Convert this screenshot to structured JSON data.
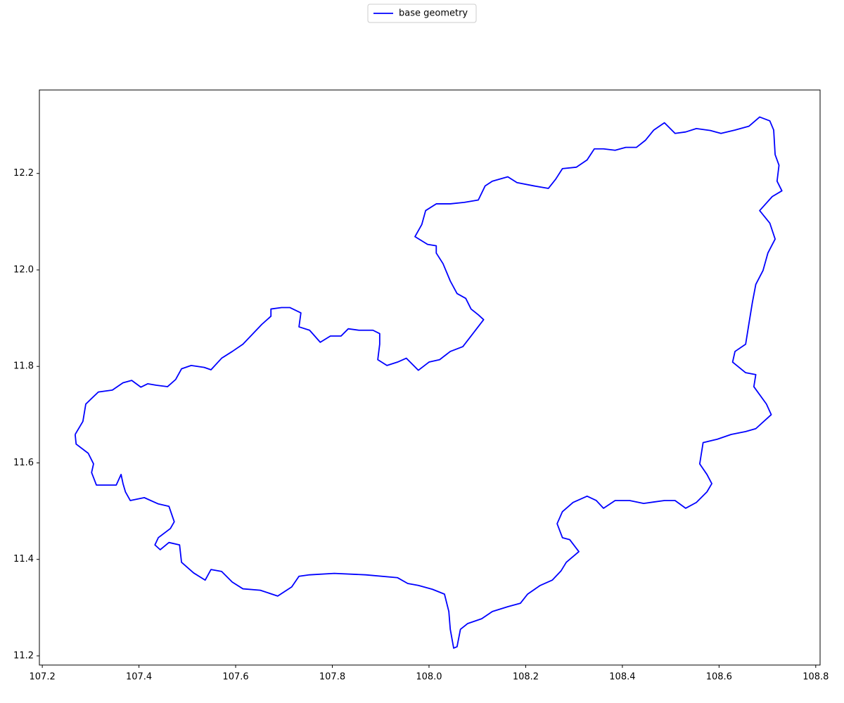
{
  "chart_data": {
    "type": "line",
    "series": [
      {
        "name": "base geometry",
        "color": "#0000ff",
        "x": [
          107.268,
          107.284,
          107.29,
          107.316,
          107.345,
          107.367,
          107.385,
          107.404,
          107.418,
          107.436,
          107.459,
          107.476,
          107.488,
          107.508,
          107.535,
          107.549,
          107.571,
          107.593,
          107.615,
          107.636,
          107.654,
          107.673,
          107.673,
          107.695,
          107.712,
          107.735,
          107.731,
          107.753,
          107.775,
          107.796,
          107.818,
          107.833,
          107.855,
          107.884,
          107.898,
          107.898,
          107.894,
          107.913,
          107.935,
          107.953,
          107.978,
          108.0,
          108.022,
          108.044,
          108.07,
          108.087,
          108.113,
          108.102,
          108.087,
          108.076,
          108.058,
          108.044,
          108.029,
          108.015,
          108.015,
          107.997,
          107.971,
          107.985,
          107.993,
          108.015,
          108.044,
          108.073,
          108.102,
          108.116,
          108.131,
          108.163,
          108.182,
          108.218,
          108.247,
          108.262,
          108.276,
          108.305,
          108.327,
          108.342,
          108.361,
          108.385,
          108.407,
          108.429,
          108.448,
          108.465,
          108.487,
          108.509,
          108.531,
          108.553,
          108.582,
          108.604,
          108.633,
          108.662,
          108.684,
          108.705,
          108.713,
          108.716,
          108.724,
          108.72,
          108.73,
          108.71,
          108.684,
          108.705,
          108.716,
          108.701,
          108.691,
          108.676,
          108.669,
          108.662,
          108.655,
          108.633,
          108.628,
          108.655,
          108.676,
          108.672,
          108.698,
          108.708,
          108.676,
          108.655,
          108.625,
          108.596,
          108.567,
          108.56,
          108.575,
          108.585,
          108.575,
          108.553,
          108.531,
          108.509,
          108.487,
          108.465,
          108.444,
          108.415,
          108.385,
          108.361,
          108.346,
          108.327,
          108.298,
          108.276,
          108.265,
          108.276,
          108.291,
          108.31,
          108.284,
          108.273,
          108.255,
          108.23,
          108.204,
          108.189,
          108.163,
          108.131,
          108.109,
          108.08,
          108.065,
          108.058,
          108.051,
          108.044,
          108.041,
          108.032,
          108.007,
          107.978,
          107.956,
          107.935,
          107.869,
          107.804,
          107.753,
          107.731,
          107.716,
          107.687,
          107.651,
          107.615,
          107.593,
          107.571,
          107.549,
          107.537,
          107.513,
          107.488,
          107.484,
          107.462,
          107.444,
          107.433,
          107.44,
          107.465,
          107.473,
          107.462,
          107.44,
          107.411,
          107.382,
          107.372,
          107.367,
          107.363,
          107.353,
          107.331,
          107.312,
          107.302,
          107.306,
          107.295,
          107.27,
          107.268
        ],
        "values": [
          11.659,
          11.686,
          11.722,
          11.747,
          11.751,
          11.766,
          11.771,
          11.757,
          11.764,
          11.761,
          11.758,
          11.773,
          11.795,
          11.802,
          11.798,
          11.793,
          11.817,
          11.831,
          11.846,
          11.868,
          11.887,
          11.904,
          11.919,
          11.922,
          11.922,
          11.911,
          11.882,
          11.875,
          11.85,
          11.863,
          11.863,
          11.878,
          11.875,
          11.875,
          11.868,
          11.846,
          11.814,
          11.802,
          11.809,
          11.817,
          11.792,
          11.809,
          11.814,
          11.831,
          11.841,
          11.863,
          11.897,
          11.907,
          11.919,
          11.941,
          11.951,
          11.977,
          12.013,
          12.035,
          12.05,
          12.053,
          12.069,
          12.094,
          12.123,
          12.137,
          12.137,
          12.14,
          12.145,
          12.174,
          12.184,
          12.193,
          12.181,
          12.174,
          12.169,
          12.188,
          12.21,
          12.213,
          12.228,
          12.251,
          12.251,
          12.248,
          12.254,
          12.254,
          12.269,
          12.29,
          12.305,
          12.283,
          12.286,
          12.293,
          12.289,
          12.283,
          12.29,
          12.298,
          12.317,
          12.309,
          12.29,
          12.239,
          12.217,
          12.184,
          12.164,
          12.152,
          12.123,
          12.097,
          12.064,
          12.035,
          11.999,
          11.97,
          11.933,
          11.89,
          11.846,
          11.831,
          11.809,
          11.787,
          11.783,
          11.758,
          11.722,
          11.7,
          11.671,
          11.665,
          11.659,
          11.649,
          11.642,
          11.598,
          11.576,
          11.557,
          11.54,
          11.518,
          11.506,
          11.522,
          11.522,
          11.519,
          11.516,
          11.522,
          11.522,
          11.506,
          11.522,
          11.531,
          11.518,
          11.499,
          11.474,
          11.445,
          11.441,
          11.416,
          11.394,
          11.376,
          11.357,
          11.346,
          11.328,
          11.309,
          11.302,
          11.292,
          11.277,
          11.267,
          11.255,
          11.219,
          11.216,
          11.255,
          11.292,
          11.328,
          11.338,
          11.346,
          11.35,
          11.362,
          11.368,
          11.371,
          11.368,
          11.365,
          11.343,
          11.324,
          11.336,
          11.339,
          11.353,
          11.375,
          11.379,
          11.357,
          11.372,
          11.394,
          11.43,
          11.435,
          11.42,
          11.43,
          11.445,
          11.464,
          11.478,
          11.51,
          11.515,
          11.528,
          11.522,
          11.54,
          11.557,
          11.576,
          11.554,
          11.554,
          11.554,
          11.58,
          11.598,
          11.62,
          11.639,
          11.659
        ]
      }
    ],
    "xlim": [
      107.194,
      108.809
    ],
    "ylim": [
      11.181,
      12.373
    ],
    "xticks": [
      107.2,
      107.4,
      107.6,
      107.8,
      {
        "value": 108,
        "label": "108.0"
      },
      108.2,
      108.4,
      108.6,
      108.8
    ],
    "yticks": [
      11.2,
      11.4,
      11.6,
      11.8,
      {
        "value": 12,
        "label": "12.0"
      },
      12.2
    ],
    "legend": "upper center"
  }
}
